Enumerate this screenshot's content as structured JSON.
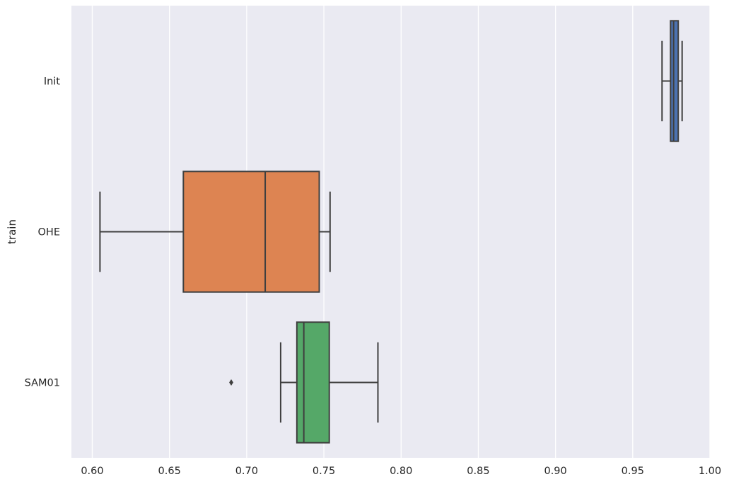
{
  "chart_data": {
    "type": "boxplot",
    "orientation": "horizontal",
    "title": "",
    "xlabel": "",
    "ylabel": "train",
    "xlim": [
      0.5865,
      1.0
    ],
    "xticks": [
      0.6,
      0.65,
      0.7,
      0.75,
      0.8,
      0.85,
      0.9,
      0.95,
      1.0
    ],
    "xtick_labels": [
      "0.60",
      "0.65",
      "0.70",
      "0.75",
      "0.80",
      "0.85",
      "0.90",
      "0.95",
      "1.00"
    ],
    "grid": true,
    "categories": [
      "Init",
      "OHE",
      "SAM01"
    ],
    "boxes": [
      {
        "label": "Init",
        "color": "#4c72b0",
        "whisker_low": 0.969,
        "q1": 0.9745,
        "median": 0.9765,
        "q3": 0.9795,
        "whisker_high": 0.982,
        "outliers": []
      },
      {
        "label": "OHE",
        "color": "#dd8452",
        "whisker_low": 0.605,
        "q1": 0.659,
        "median": 0.712,
        "q3": 0.747,
        "whisker_high": 0.754,
        "outliers": []
      },
      {
        "label": "SAM01",
        "color": "#55a868",
        "whisker_low": 0.722,
        "q1": 0.7325,
        "median": 0.737,
        "q3": 0.7535,
        "whisker_high": 0.785,
        "outliers": [
          0.69
        ]
      }
    ],
    "colors": {
      "plot_background": "#eaeaf2",
      "grid": "#ffffff",
      "box_edge": "#3f3f3f"
    }
  }
}
